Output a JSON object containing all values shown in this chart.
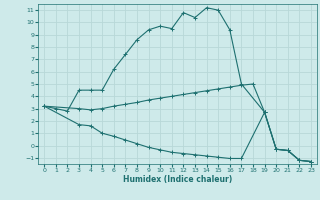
{
  "xlabel": "Humidex (Indice chaleur)",
  "bg_color": "#ceeaea",
  "grid_color": "#b8d8d8",
  "line_color": "#1e7070",
  "xlim": [
    -0.5,
    23.5
  ],
  "ylim": [
    -1.5,
    11.5
  ],
  "xticks": [
    0,
    1,
    2,
    3,
    4,
    5,
    6,
    7,
    8,
    9,
    10,
    11,
    12,
    13,
    14,
    15,
    16,
    17,
    18,
    19,
    20,
    21,
    22,
    23
  ],
  "yticks": [
    -1,
    0,
    1,
    2,
    3,
    4,
    5,
    6,
    7,
    8,
    9,
    10,
    11
  ],
  "c1x": [
    0,
    1,
    2,
    3,
    4,
    5,
    6,
    7,
    8,
    9,
    10,
    11,
    12,
    13,
    14,
    15,
    16,
    17,
    19,
    20,
    21,
    22,
    23
  ],
  "c1y": [
    3.2,
    3.0,
    2.8,
    4.5,
    4.5,
    4.5,
    6.2,
    7.4,
    8.6,
    9.4,
    9.7,
    9.5,
    10.8,
    10.4,
    11.2,
    11.0,
    9.4,
    5.0,
    2.7,
    -0.3,
    -0.4,
    -1.2,
    -1.3
  ],
  "c2x": [
    0,
    3,
    4,
    5,
    6,
    7,
    8,
    9,
    10,
    11,
    12,
    13,
    14,
    15,
    16,
    17,
    18,
    19,
    20,
    21,
    22,
    23
  ],
  "c2y": [
    3.2,
    3.0,
    2.9,
    3.0,
    3.2,
    3.35,
    3.5,
    3.7,
    3.85,
    4.0,
    4.15,
    4.3,
    4.45,
    4.6,
    4.75,
    4.9,
    5.0,
    2.7,
    -0.3,
    -0.4,
    -1.2,
    -1.3
  ],
  "c3x": [
    0,
    3,
    4,
    5,
    6,
    7,
    8,
    9,
    10,
    11,
    12,
    13,
    14,
    15,
    16,
    17,
    19,
    20,
    21,
    22,
    23
  ],
  "c3y": [
    3.2,
    1.7,
    1.6,
    1.0,
    0.75,
    0.45,
    0.15,
    -0.15,
    -0.35,
    -0.55,
    -0.65,
    -0.75,
    -0.85,
    -0.95,
    -1.05,
    -1.05,
    2.7,
    -0.3,
    -0.4,
    -1.2,
    -1.3
  ]
}
